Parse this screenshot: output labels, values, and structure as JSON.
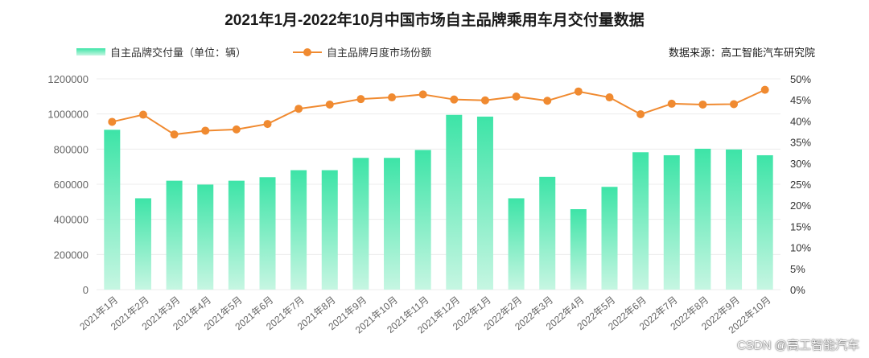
{
  "chart_data": {
    "type": "bar",
    "title": "2021年1月-2022年10月中国市场自主品牌乘用车月交付量数据",
    "source": "数据来源：高工智能汽车研究院",
    "categories": [
      "2021年1月",
      "2021年2月",
      "2021年3月",
      "2021年4月",
      "2021年5月",
      "2021年6月",
      "2021年7月",
      "2021年8月",
      "2021年9月",
      "2021年10月",
      "2021年11月",
      "2021年12月",
      "2022年1月",
      "2022年2月",
      "2022年3月",
      "2022年4月",
      "2022年5月",
      "2022年6月",
      "2022年7月",
      "2022年8月",
      "2022年9月",
      "2022年10月"
    ],
    "series": [
      {
        "name": "自主品牌交付量（单位：辆）",
        "type": "bar",
        "axis": "left",
        "values": [
          910000,
          520000,
          620000,
          598000,
          620000,
          640000,
          680000,
          680000,
          750000,
          750000,
          795000,
          995000,
          985000,
          520000,
          642000,
          458000,
          585000,
          782000,
          765000,
          802000,
          798000,
          765000
        ]
      },
      {
        "name": "自主品牌月度市场份额",
        "type": "line",
        "axis": "right",
        "unit": "%",
        "values": [
          39.8,
          41.5,
          36.8,
          37.7,
          38.0,
          39.3,
          42.9,
          43.9,
          45.2,
          45.6,
          46.3,
          45.1,
          44.9,
          45.8,
          44.8,
          47.0,
          45.6,
          41.6,
          44.1,
          43.9,
          44.0,
          47.4
        ]
      }
    ],
    "y_left": {
      "min": 0,
      "max": 1200000,
      "ticks": [
        "0",
        "200000",
        "400000",
        "600000",
        "800000",
        "1000000",
        "1200000"
      ]
    },
    "y_right": {
      "min": 0,
      "max": 50,
      "ticks": [
        "0%",
        "5%",
        "10%",
        "15%",
        "20%",
        "25%",
        "30%",
        "35%",
        "40%",
        "45%",
        "50%"
      ]
    },
    "grid": true,
    "legend_position": "top-left",
    "colors": {
      "bar_top": "#3de4a7",
      "bar_bottom": "#c6f6e2",
      "line": "#f08a30",
      "grid": "#ececec",
      "tick": "#666666"
    }
  },
  "watermark": "CSDN @高工智能汽车"
}
